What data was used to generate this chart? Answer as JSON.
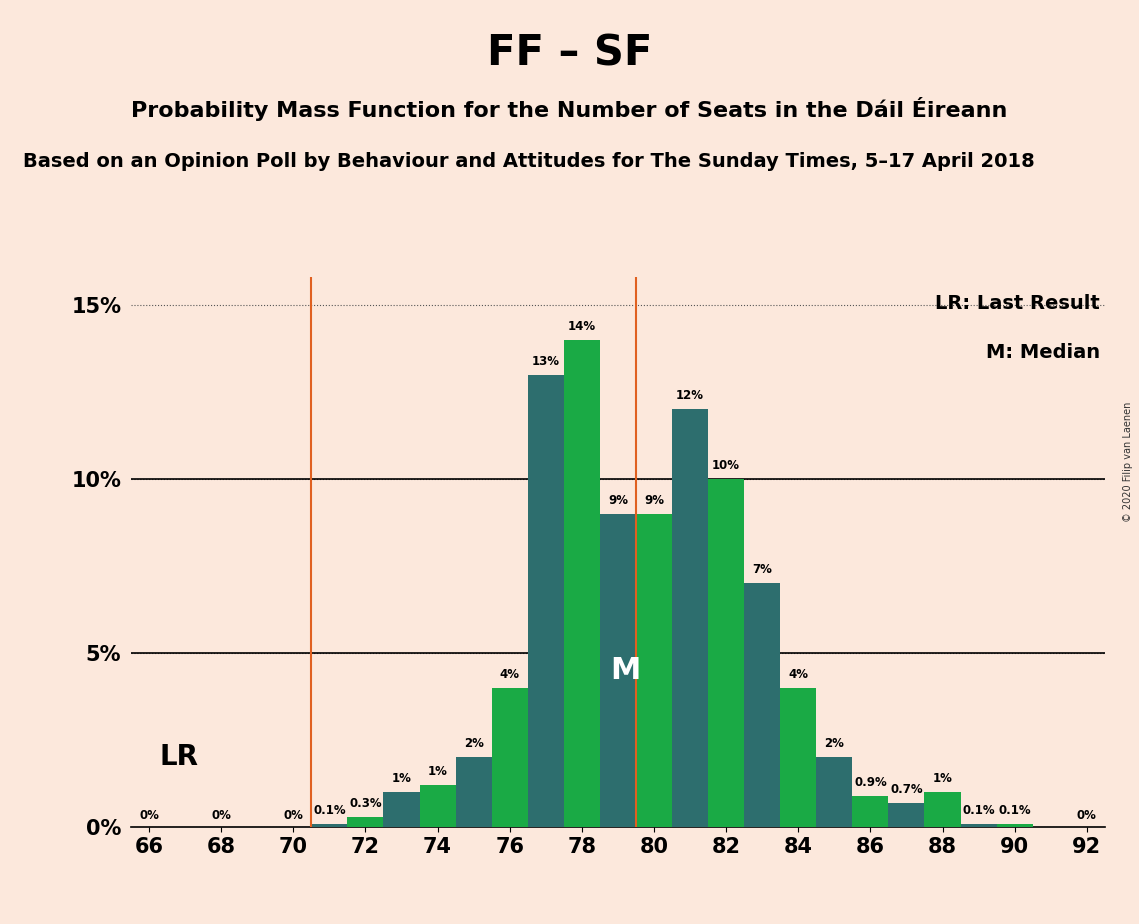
{
  "title": "FF – SF",
  "subtitle": "Probability Mass Function for the Number of Seats in the Dáil Éireann",
  "subsubtitle": "Based on an Opinion Poll by Behaviour and Attitudes for The Sunday Times, 5–17 April 2018",
  "copyright": "© 2020 Filip van Laenen",
  "seats": [
    66,
    67,
    68,
    69,
    70,
    71,
    72,
    73,
    74,
    75,
    76,
    77,
    78,
    79,
    80,
    81,
    82,
    83,
    84,
    85,
    86,
    87,
    88,
    89,
    90,
    91,
    92
  ],
  "probs": [
    0.0,
    0.0,
    0.0,
    0.0,
    0.0,
    0.1,
    0.3,
    1.0,
    1.2,
    2.0,
    4.0,
    13.0,
    14.0,
    9.0,
    9.0,
    12.0,
    10.0,
    7.0,
    4.0,
    2.0,
    0.9,
    0.7,
    1.0,
    0.1,
    0.1,
    0.0,
    0.0
  ],
  "color_even": "#1aaa45",
  "color_odd": "#2d6e6e",
  "background_color": "#fce8dc",
  "lr_x": 70.5,
  "median_x": 79.5,
  "line_color": "#e06020",
  "xlim": [
    65.5,
    92.5
  ],
  "ylim": [
    0,
    15.8
  ],
  "xticks": [
    66,
    68,
    70,
    72,
    74,
    76,
    78,
    80,
    82,
    84,
    86,
    88,
    90,
    92
  ],
  "yticks": [
    0,
    5,
    10,
    15
  ],
  "ytick_labels": [
    "0%",
    "5%",
    "10%",
    "15%"
  ],
  "bar_width": 1.0,
  "title_fontsize": 30,
  "subtitle_fontsize": 16,
  "subsubtitle_fontsize": 14,
  "legend_lr_text": "LR: Last Result",
  "legend_m_text": "M: Median",
  "copyright_fontsize": 7,
  "lr_label": "LR",
  "m_label": "M"
}
